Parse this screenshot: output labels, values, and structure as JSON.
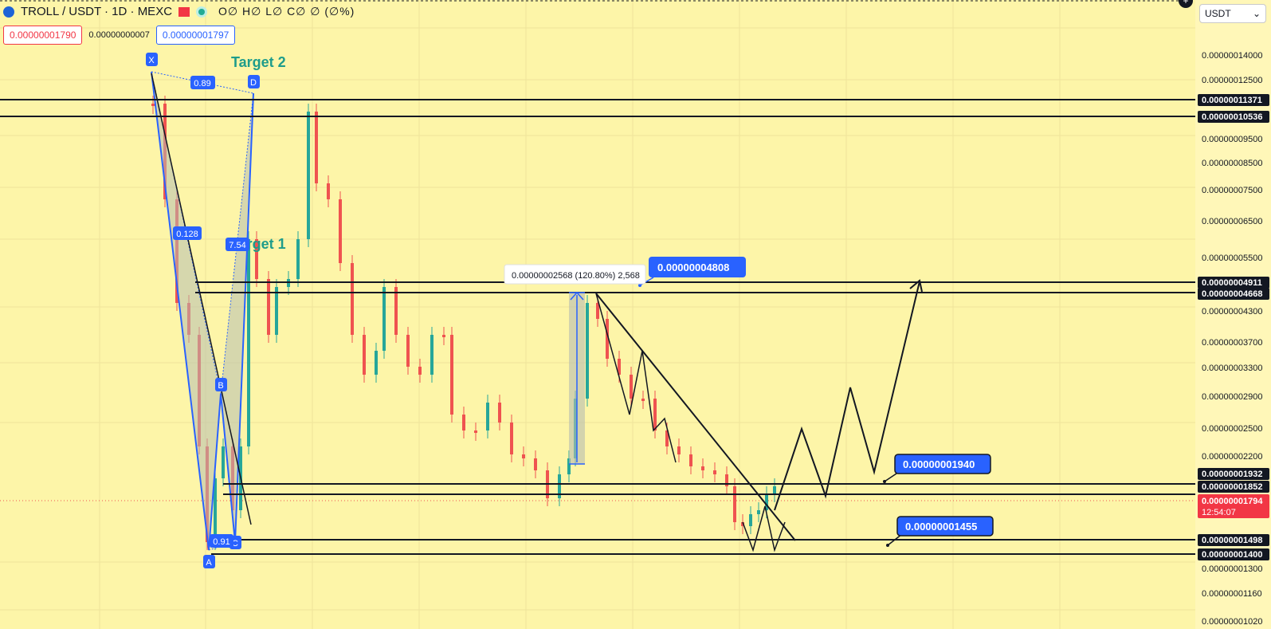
{
  "header": {
    "title": "TROLL / USDT · 1D · MEXC",
    "ohlc": "O∅ H∅ L∅ C∅ ∅ (∅%)",
    "sell_price": "0.00000001790",
    "spread": "0.00000000007",
    "buy_price": "0.00000001797"
  },
  "currency": {
    "selected": "USDT",
    "icon": "chevron-down-icon"
  },
  "colors": {
    "background": "#fdf5a8",
    "bull": "#26a69a",
    "bear": "#ef5350",
    "pattern_blue": "#2962ff",
    "target_text": "#1e9c8b",
    "line": "#131722"
  },
  "axis_ticks": [
    "0.00000014000",
    "0.00000012500",
    "0.00000009500",
    "0.00000008500",
    "0.00000007500",
    "0.00000006500",
    "0.00000005500",
    "0.00000004300",
    "0.00000003700",
    "0.00000003300",
    "0.00000002900",
    "0.00000002500",
    "0.00000002200",
    "0.00000001300",
    "0.00000001160",
    "0.00000001020"
  ],
  "level_labels": [
    "0.00000011371",
    "0.00000010536",
    "0.00000004911",
    "0.00000004668",
    "0.00000001932",
    "0.00000001852",
    "0.00000001498",
    "0.00000001400"
  ],
  "current_price": {
    "value": "0.00000001794",
    "countdown": "12:54:07"
  },
  "pattern": {
    "points": [
      "X",
      "A",
      "B",
      "C",
      "D"
    ],
    "ratios": [
      "0.89",
      "0.128",
      "7.54",
      "0.91"
    ],
    "target1": "Target 1",
    "target2": "Target 2"
  },
  "measure": {
    "text": "0.00000002568 (120.80%) 2,568"
  },
  "callouts": [
    "0.00000004808",
    "0.00000001940",
    "0.00000001455"
  ]
}
